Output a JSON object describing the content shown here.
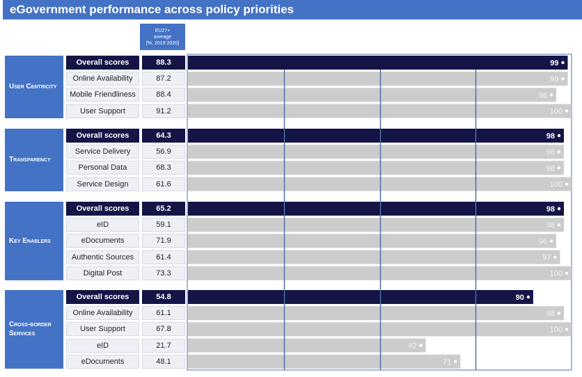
{
  "title": "eGovernment performance across policy priorities",
  "avg_header": [
    "EU27+",
    "average",
    "[%, 2019 2020]"
  ],
  "colors": {
    "header_blue": "#4472c4",
    "overall_bar": "#141446",
    "sub_bar": "#cccccc",
    "grid": "#4f6fa8"
  },
  "chart_data": {
    "type": "bar",
    "orientation": "horizontal",
    "xlim": [
      0,
      100
    ],
    "grid": true,
    "groups": [
      {
        "name": "User Centricity",
        "rows": [
          {
            "label": "Overall scores",
            "average": "88.3",
            "value": 99,
            "overall": true
          },
          {
            "label": "Online Availability",
            "average": "87.2",
            "value": 99
          },
          {
            "label": "Mobile Friendliness",
            "average": "88.4",
            "value": 96
          },
          {
            "label": "User Support",
            "average": "91.2",
            "value": 100
          }
        ]
      },
      {
        "name": "Transparency",
        "rows": [
          {
            "label": "Overall scores",
            "average": "64.3",
            "value": 98,
            "overall": true
          },
          {
            "label": "Service Delivery",
            "average": "56.9",
            "value": 98
          },
          {
            "label": "Personal Data",
            "average": "68.3",
            "value": 98
          },
          {
            "label": "Service Design",
            "average": "61.6",
            "value": 100
          }
        ]
      },
      {
        "name": "Key Enablers",
        "rows": [
          {
            "label": "Overall scores",
            "average": "65.2",
            "value": 98,
            "overall": true
          },
          {
            "label": "eID",
            "average": "59.1",
            "value": 98
          },
          {
            "label": "eDocuments",
            "average": "71.9",
            "value": 96
          },
          {
            "label": "Authentic Sources",
            "average": "61.4",
            "value": 97
          },
          {
            "label": "Digital Post",
            "average": "73.3",
            "value": 100
          }
        ]
      },
      {
        "name": "Cross-border Services",
        "rows": [
          {
            "label": "Overall scores",
            "average": "54.8",
            "value": 90,
            "overall": true
          },
          {
            "label": "Online Availability",
            "average": "61.1",
            "value": 98
          },
          {
            "label": "User Support",
            "average": "67.8",
            "value": 100
          },
          {
            "label": "eID",
            "average": "21.7",
            "value": 62
          },
          {
            "label": "eDocuments",
            "average": "48.1",
            "value": 71
          }
        ]
      }
    ]
  }
}
